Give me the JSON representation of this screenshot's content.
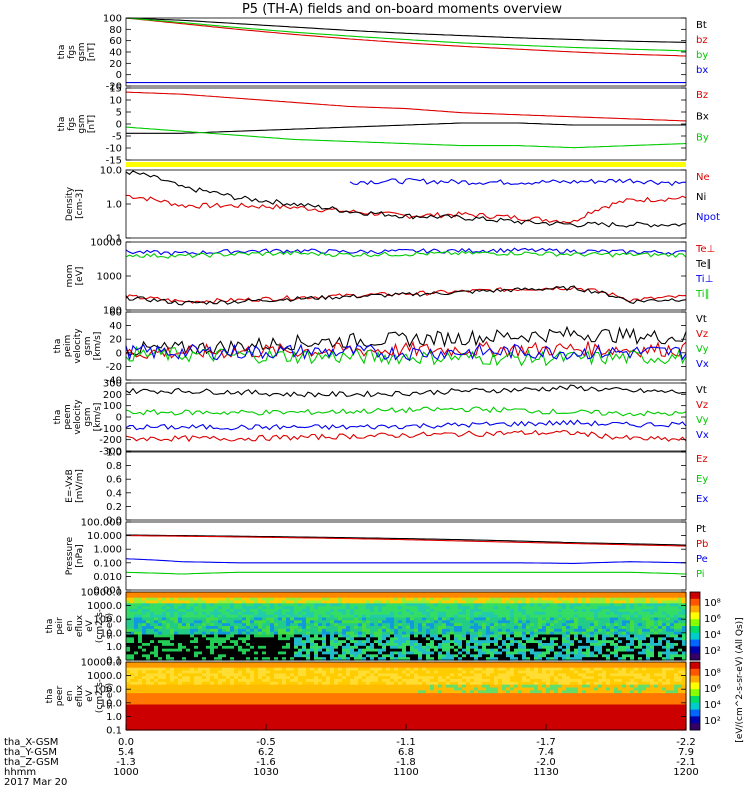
{
  "title": "P5 (TH-A) fields and on-board moments overview",
  "colors": {
    "black": "#000000",
    "red": "#dd0000",
    "green": "#00cc00",
    "blue": "#0000ee",
    "yellow": "#ffff00"
  },
  "chart_data": [
    {
      "type": "line",
      "id": "fgs_btot",
      "ylabel": [
        "tha",
        "fgs",
        "gsm",
        "[nT]"
      ],
      "ylim": [
        -20,
        100
      ],
      "yticks": [
        "100",
        "80",
        "60",
        "40",
        "20",
        "0",
        "-20"
      ],
      "series": [
        {
          "name": "Bt",
          "color": "black",
          "values": [
            100,
            96,
            90,
            84,
            78,
            73,
            69,
            65,
            62,
            59,
            57
          ]
        },
        {
          "name": "bz",
          "color": "red",
          "values": [
            100,
            90,
            80,
            71,
            63,
            56,
            50,
            45,
            40,
            36,
            33
          ]
        },
        {
          "name": "by",
          "color": "green",
          "values": [
            100,
            92,
            83,
            75,
            68,
            62,
            56,
            52,
            48,
            45,
            42
          ]
        },
        {
          "name": "bx",
          "color": "blue",
          "values": [
            -14,
            -14,
            -14,
            -14,
            -14,
            -14,
            -14,
            -14,
            -14,
            -14,
            -14
          ]
        }
      ]
    },
    {
      "type": "line",
      "id": "fgs_comp",
      "ylabel": [
        "tha",
        "fgs",
        "gsm",
        "[nT]"
      ],
      "ylim": [
        -18,
        17
      ],
      "yticks": [
        "15",
        "10",
        "5",
        "0",
        "-5",
        "-10",
        "-15"
      ],
      "series": [
        {
          "name": "Bz",
          "color": "red",
          "values": [
            15,
            14,
            12,
            10,
            8,
            7,
            5,
            4,
            3,
            2,
            1
          ]
        },
        {
          "name": "Bx",
          "color": "black",
          "values": [
            -5,
            -5,
            -4,
            -3,
            -2,
            -1,
            0,
            0,
            -1,
            -1,
            -1
          ]
        },
        {
          "name": "By",
          "color": "green",
          "values": [
            -2,
            -4,
            -6,
            -8,
            -9,
            -10,
            -11,
            -11,
            -12,
            -11,
            -10
          ]
        }
      ]
    },
    {
      "type": "line",
      "id": "density",
      "ylabel": [
        "Density",
        "[cm-3]"
      ],
      "log": true,
      "ylim": [
        0.1,
        10
      ],
      "yticks": [
        "10.0",
        "1.0",
        "0.1"
      ],
      "series": [
        {
          "name": "Ne",
          "color": "red",
          "values": [
            1.8,
            0.9,
            0.9,
            0.8,
            0.6,
            0.45,
            0.5,
            0.4,
            0.3,
            1.3,
            1.5
          ]
        },
        {
          "name": "Ni",
          "color": "black",
          "values": [
            9,
            3,
            1.5,
            1.0,
            0.6,
            0.45,
            0.4,
            0.3,
            0.25,
            0.25,
            0.25
          ]
        },
        {
          "name": "Npot",
          "color": "blue",
          "values": [
            null,
            null,
            null,
            null,
            4.5,
            4.8,
            4.5,
            4.4,
            4.5,
            5.0,
            4.0
          ]
        }
      ]
    },
    {
      "type": "line",
      "id": "mom_temp",
      "ylabel": [
        "mom",
        "[eV]"
      ],
      "log": true,
      "ylim": [
        40,
        10000
      ],
      "yticks": [
        "10000",
        "1000",
        "100"
      ],
      "series": [
        {
          "name": "Te⊥",
          "color": "red",
          "values": [
            120,
            80,
            90,
            110,
            130,
            150,
            180,
            220,
            250,
            90,
            120
          ]
        },
        {
          "name": "Te∥",
          "color": "black",
          "values": [
            110,
            70,
            80,
            100,
            120,
            140,
            170,
            210,
            240,
            80,
            100
          ]
        },
        {
          "name": "Ti⊥",
          "color": "blue",
          "values": [
            4500,
            4000,
            4800,
            5000,
            4500,
            4800,
            5000,
            5200,
            4800,
            4500,
            4300
          ]
        },
        {
          "name": "Ti∥",
          "color": "green",
          "values": [
            3500,
            3200,
            3800,
            4000,
            3600,
            3800,
            4000,
            4100,
            3700,
            3600,
            3500
          ]
        }
      ]
    },
    {
      "type": "line",
      "id": "peim_vel",
      "ylabel": [
        "tha",
        "peim",
        "velocity",
        "gsm",
        "[km/s]"
      ],
      "ylim": [
        -40,
        60
      ],
      "yticks": [
        "60",
        "40",
        "20",
        "0",
        "-20",
        "-40"
      ],
      "series": [
        {
          "name": "Vt",
          "color": "black",
          "values": [
            5,
            6,
            10,
            15,
            18,
            20,
            22,
            25,
            28,
            25,
            22
          ]
        },
        {
          "name": "Vz",
          "color": "red",
          "values": [
            0,
            1,
            2,
            3,
            4,
            4,
            5,
            5,
            6,
            5,
            5
          ]
        },
        {
          "name": "Vy",
          "color": "green",
          "values": [
            -2,
            -3,
            -4,
            -5,
            -6,
            -6,
            -7,
            -8,
            -8,
            -7,
            -6
          ]
        },
        {
          "name": "Vx",
          "color": "blue",
          "values": [
            1,
            1,
            1,
            2,
            1,
            0,
            1,
            2,
            1,
            1,
            1
          ]
        }
      ]
    },
    {
      "type": "line",
      "id": "peem_vel",
      "ylabel": [
        "tha",
        "peem",
        "velocity",
        "gsm",
        "[km/s]"
      ],
      "ylim": [
        -300,
        300
      ],
      "yticks": [
        "300",
        "200",
        "100",
        "0",
        "-100",
        "-200",
        "-300"
      ],
      "series": [
        {
          "name": "Vt",
          "color": "black",
          "values": [
            230,
            230,
            220,
            200,
            200,
            210,
            230,
            240,
            260,
            230,
            220
          ]
        },
        {
          "name": "Vz",
          "color": "red",
          "values": [
            -190,
            -190,
            -190,
            -180,
            -170,
            -160,
            -150,
            -140,
            -140,
            -190,
            -200
          ]
        },
        {
          "name": "Vy",
          "color": "green",
          "values": [
            40,
            40,
            40,
            40,
            50,
            60,
            70,
            60,
            40,
            30,
            30
          ]
        },
        {
          "name": "Vx",
          "color": "blue",
          "values": [
            -90,
            -90,
            -90,
            -90,
            -90,
            -80,
            -70,
            -60,
            -50,
            -70,
            -60
          ]
        }
      ]
    },
    {
      "type": "line",
      "id": "efield",
      "ylabel": [
        "E=-VxB",
        "[mV/m]"
      ],
      "ylim": [
        0,
        1
      ],
      "yticks": [
        "1.0",
        "0.8",
        "0.6",
        "0.4",
        "0.2",
        "0.0"
      ],
      "series": [
        {
          "name": "Ez",
          "color": "red",
          "values": []
        },
        {
          "name": "Ey",
          "color": "green",
          "values": []
        },
        {
          "name": "Ex",
          "color": "blue",
          "values": []
        }
      ]
    },
    {
      "type": "line",
      "id": "pressure",
      "ylabel": [
        "Pressure",
        "[nPa]"
      ],
      "log": true,
      "ylim": [
        0.001,
        100
      ],
      "yticks": [
        "100.000",
        "10.000",
        "1.000",
        "0.100",
        "0.010",
        "0.001"
      ],
      "series": [
        {
          "name": "Pt",
          "color": "black",
          "values": [
            11,
            10,
            9,
            8,
            7,
            6,
            5,
            4,
            3,
            2.5,
            2
          ]
        },
        {
          "name": "Pb",
          "color": "red",
          "values": [
            10,
            9,
            8,
            7,
            6,
            5,
            4,
            3.2,
            2.6,
            2.1,
            1.7
          ]
        },
        {
          "name": "Pe",
          "color": "blue",
          "values": [
            0.2,
            0.12,
            0.1,
            0.1,
            0.1,
            0.1,
            0.1,
            0.1,
            0.09,
            0.12,
            0.1
          ]
        },
        {
          "name": "Pi",
          "color": "green",
          "values": [
            0.02,
            0.015,
            0.02,
            0.02,
            0.02,
            0.02,
            0.02,
            0.02,
            0.02,
            0.02,
            0.015
          ]
        }
      ]
    },
    {
      "type": "heatmap",
      "id": "peir",
      "ylabel": [
        "tha",
        "peir",
        "en",
        "eflux",
        "eV",
        "(cm2-s-",
        "sr-eV)"
      ],
      "log": true,
      "ylim": [
        0.1,
        10000
      ],
      "yticks": [
        "10000.0",
        "1000.0",
        "100.0",
        "10.0",
        "1.0",
        "0.1"
      ],
      "colorbar_ticks": [
        "10⁸",
        "10⁶",
        "10⁴",
        "10²"
      ],
      "colorbar_label": "[eV/(cm^2-s-sr-eV)]"
    },
    {
      "type": "heatmap",
      "id": "peer",
      "ylabel": [
        "tha",
        "peer",
        "en",
        "eflux",
        "eV",
        "(cm2-s-",
        "sr-eV)"
      ],
      "log": true,
      "ylim": [
        0.1,
        10000
      ],
      "yticks": [
        "10000.0",
        "1000.0",
        "100.0",
        "10.0",
        "1.0",
        "0.1"
      ],
      "colorbar_ticks": [
        "10⁸",
        "10⁶",
        "10⁴",
        "10²"
      ],
      "colorbar_label": "[eV/(cm^2-s-sr-eV)]"
    }
  ],
  "bottom_axis": {
    "rows": [
      {
        "label": "tha_X-GSM",
        "values": [
          "0.0",
          "-0.5",
          "-1.1",
          "-1.7",
          "-2.2"
        ]
      },
      {
        "label": "tha_Y-GSM",
        "values": [
          "5.4",
          "6.2",
          "6.8",
          "7.4",
          "7.9"
        ]
      },
      {
        "label": "tha_Z-GSM",
        "values": [
          "-1.3",
          "-1.6",
          "-1.8",
          "-2.0",
          "-2.1"
        ]
      },
      {
        "label": "hhmm",
        "values": [
          "1000",
          "1030",
          "1100",
          "1130",
          "1200"
        ]
      }
    ],
    "date": "2017 Mar 20"
  },
  "cb_label_text": "[eV/(cm^2-s-sr-eV) (All Qs)]"
}
